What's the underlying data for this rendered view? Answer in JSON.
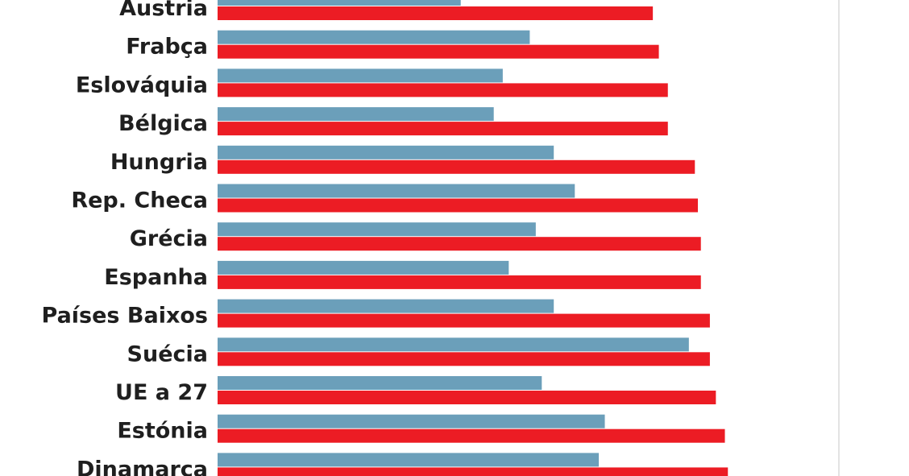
{
  "chart_data": {
    "type": "bar",
    "orientation": "horizontal",
    "title": "",
    "xlabel": "",
    "ylabel": "",
    "grid": false,
    "legend": "none",
    "categories": [
      "Áustria",
      "Frabça",
      "Eslováquia",
      "Bélgica",
      "Hungria",
      "Rep. Checa",
      "Grécia",
      "Espanha",
      "Países Baixos",
      "Suécia",
      "UE a 27",
      "Estónia",
      "Dinamarca"
    ],
    "series": [
      {
        "color": "#6b9fba",
        "values": [
          40.5,
          52.0,
          47.5,
          46.0,
          56.0,
          59.5,
          53.0,
          48.5,
          56.0,
          78.5,
          54.0,
          64.5,
          63.5
        ]
      },
      {
        "color": "#ec1c24",
        "values": [
          72.5,
          73.5,
          75.0,
          75.0,
          79.5,
          80.0,
          80.5,
          80.5,
          82.0,
          82.0,
          83.0,
          84.5,
          85.0
        ]
      }
    ],
    "xlim": [
      0,
      100
    ]
  }
}
